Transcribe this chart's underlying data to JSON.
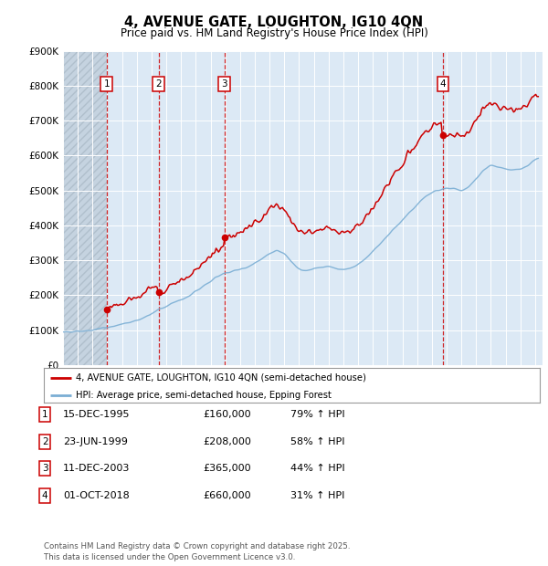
{
  "title": "4, AVENUE GATE, LOUGHTON, IG10 4QN",
  "subtitle": "Price paid vs. HM Land Registry's House Price Index (HPI)",
  "ylim": [
    0,
    900000
  ],
  "yticks": [
    0,
    100000,
    200000,
    300000,
    400000,
    500000,
    600000,
    700000,
    800000,
    900000
  ],
  "ytick_labels": [
    "£0",
    "£100K",
    "£200K",
    "£300K",
    "£400K",
    "£500K",
    "£600K",
    "£700K",
    "£800K",
    "£900K"
  ],
  "xlim_start": 1993.0,
  "xlim_end": 2025.5,
  "background_color": "#dce9f5",
  "hatch_region_end": 1995.96,
  "sale_dates": [
    1995.958,
    1999.479,
    2003.944,
    2018.75
  ],
  "sale_prices": [
    160000,
    208000,
    365000,
    660000
  ],
  "sale_labels": [
    "1",
    "2",
    "3",
    "4"
  ],
  "legend_line1": "4, AVENUE GATE, LOUGHTON, IG10 4QN (semi-detached house)",
  "legend_line2": "HPI: Average price, semi-detached house, Epping Forest",
  "table_rows": [
    [
      "1",
      "15-DEC-1995",
      "£160,000",
      "79% ↑ HPI"
    ],
    [
      "2",
      "23-JUN-1999",
      "£208,000",
      "58% ↑ HPI"
    ],
    [
      "3",
      "11-DEC-2003",
      "£365,000",
      "44% ↑ HPI"
    ],
    [
      "4",
      "01-OCT-2018",
      "£660,000",
      "31% ↑ HPI"
    ]
  ],
  "footer": "Contains HM Land Registry data © Crown copyright and database right 2025.\nThis data is licensed under the Open Government Licence v3.0.",
  "line_color_red": "#cc0000",
  "line_color_blue": "#7aaed4",
  "grid_color": "#ffffff"
}
